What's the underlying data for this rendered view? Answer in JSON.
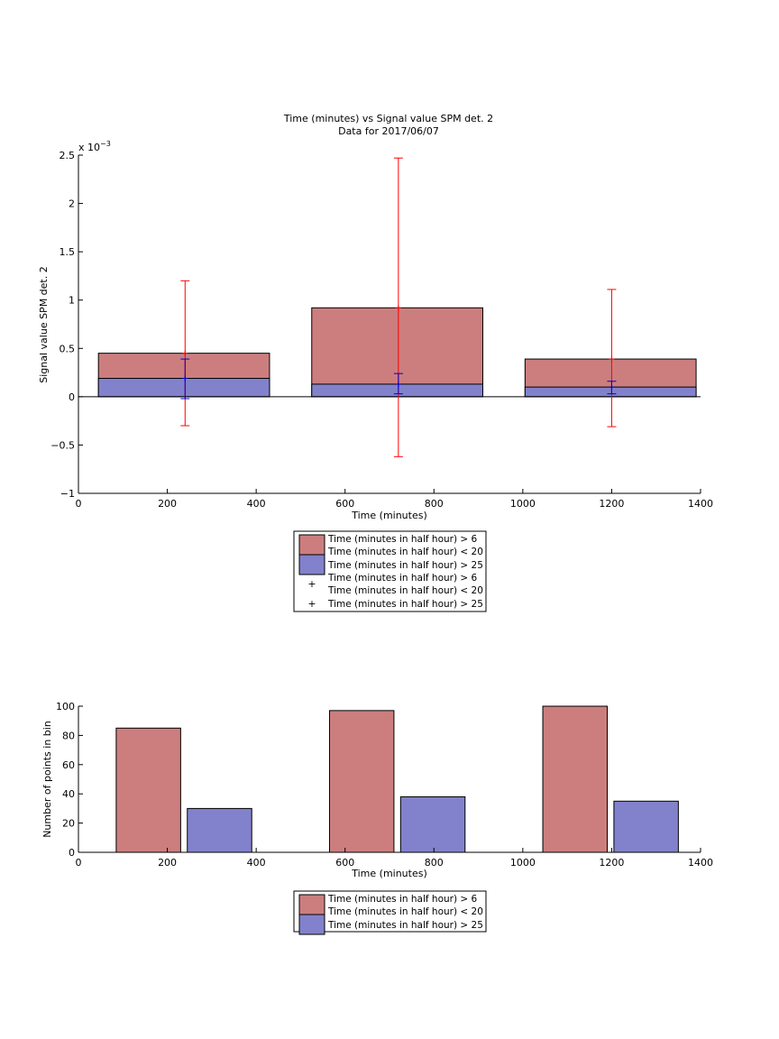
{
  "colors": {
    "series1_fill": "#cc7e7e",
    "series2_fill": "#8282cc",
    "errorbar1": "#ff0000",
    "errorbar2": "#0000cc",
    "axes": "#000000"
  },
  "chart_data": [
    {
      "type": "bar",
      "title_line1": "Time (minutes) vs Signal value SPM det. 2",
      "title_line2": "Data for 2017/06/07",
      "xlabel": "Time (minutes)",
      "ylabel": "Signal value SPM det. 2",
      "y_exponent": "x 10",
      "y_exponent_power": "−3",
      "xlim": [
        0,
        1400
      ],
      "ylim": [
        -1,
        2.5
      ],
      "xticks": [
        0,
        200,
        400,
        600,
        800,
        1000,
        1200,
        1400
      ],
      "xtick_labels": [
        "0",
        "200",
        "400",
        "600",
        "800",
        "1000",
        "1200",
        "1400"
      ],
      "yticks": [
        -1,
        -0.5,
        0,
        0.5,
        1,
        1.5,
        2,
        2.5
      ],
      "ytick_labels": [
        "−1",
        "−0.5",
        "0",
        "0.5",
        "1",
        "1.5",
        "2",
        "2.5"
      ],
      "grid": false,
      "legend_position": "below",
      "bar_ranges": [
        [
          45,
          430
        ],
        [
          525,
          910
        ],
        [
          1005,
          1390
        ]
      ],
      "series": [
        {
          "name": "Time (minutes in half hour) > 6",
          "name_line2": "Time (minutes in half hour) < 20",
          "values": [
            0.45,
            0.92,
            0.39
          ]
        },
        {
          "name": "Time (minutes in half hour) > 25",
          "values": [
            0.19,
            0.13,
            0.1
          ]
        }
      ],
      "errorbars": [
        {
          "name": "Time (minutes in half hour) > 6",
          "name_line2": "Time (minutes in half hour) < 20",
          "marker": "+",
          "x": [
            240,
            720,
            1200
          ],
          "y": [
            0.45,
            0.92,
            0.39
          ],
          "low": [
            -0.3,
            -0.62,
            -0.31
          ],
          "high": [
            1.2,
            2.47,
            1.11
          ]
        },
        {
          "name": "Time (minutes in half hour) > 25",
          "marker": "+",
          "x": [
            240,
            720,
            1200
          ],
          "y": [
            0.19,
            0.13,
            0.1
          ],
          "low": [
            -0.02,
            0.03,
            0.03
          ],
          "high": [
            0.39,
            0.24,
            0.16
          ]
        }
      ]
    },
    {
      "type": "bar",
      "xlabel": "Time (minutes)",
      "ylabel": "Number of points in bin",
      "xlim": [
        0,
        1400
      ],
      "ylim": [
        0,
        100
      ],
      "xticks": [
        0,
        200,
        400,
        600,
        800,
        1000,
        1200,
        1400
      ],
      "xtick_labels": [
        "0",
        "200",
        "400",
        "600",
        "800",
        "1000",
        "1200",
        "1400"
      ],
      "yticks": [
        0,
        20,
        40,
        60,
        80,
        100
      ],
      "ytick_labels": [
        "0",
        "20",
        "40",
        "60",
        "80",
        "100"
      ],
      "grid": false,
      "legend_position": "below",
      "series": [
        {
          "name": "Time (minutes in half hour) > 6",
          "name_line2": "Time (minutes in half hour) < 20",
          "x_ranges": [
            [
              85,
              230
            ],
            [
              565,
              710
            ],
            [
              1045,
              1190
            ]
          ],
          "values": [
            85,
            97,
            100
          ]
        },
        {
          "name": "Time (minutes in half hour) > 25",
          "x_ranges": [
            [
              245,
              390
            ],
            [
              725,
              870
            ],
            [
              1205,
              1350
            ]
          ],
          "values": [
            30,
            38,
            35
          ]
        }
      ]
    }
  ]
}
